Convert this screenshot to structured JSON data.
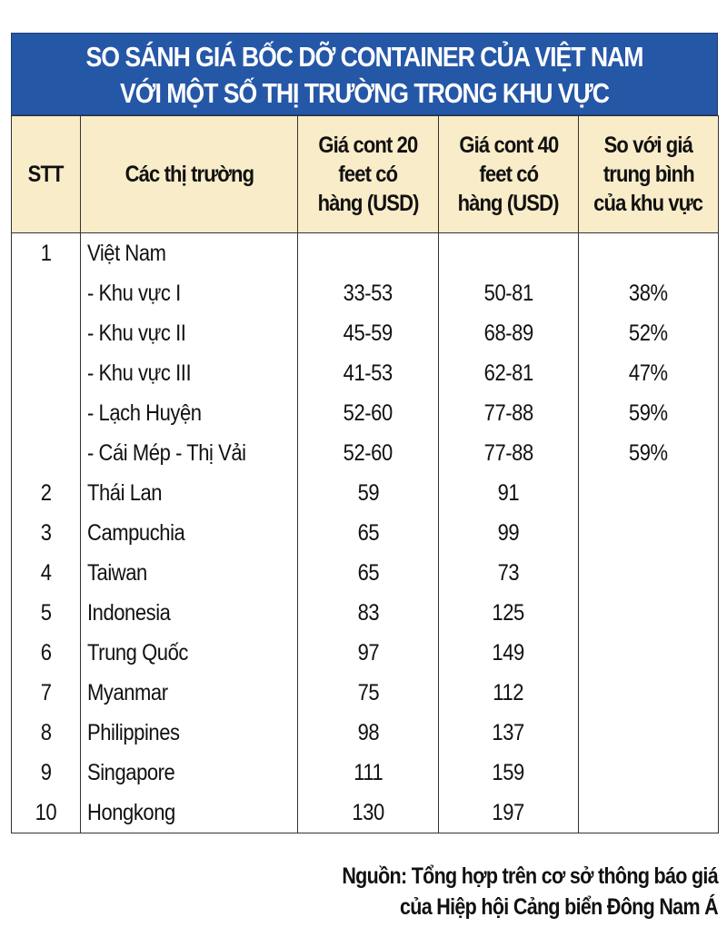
{
  "chart_data": {
    "type": "table",
    "title_lines": [
      "SO SÁNH GIÁ BỐC DỠ CONTAINER CỦA VIỆT NAM",
      "VỚI MỘT SỐ THỊ TRƯỜNG TRONG KHU VỰC"
    ],
    "columns": [
      [
        "STT"
      ],
      [
        "Các thị trường"
      ],
      [
        "Giá cont 20",
        "feet có",
        "hàng (USD)"
      ],
      [
        "Giá cont 40",
        "feet có",
        "hàng (USD)"
      ],
      [
        "So với giá",
        "trung bình",
        "của khu vực"
      ]
    ],
    "rows": [
      [
        "1",
        "Việt Nam",
        "",
        "",
        ""
      ],
      [
        "",
        "- Khu vực I",
        "33-53",
        "50-81",
        "38%"
      ],
      [
        "",
        "- Khu vực II",
        "45-59",
        "68-89",
        "52%"
      ],
      [
        "",
        "- Khu vực III",
        "41-53",
        "62-81",
        "47%"
      ],
      [
        "",
        "- Lạch Huyện",
        "52-60",
        "77-88",
        "59%"
      ],
      [
        "",
        "- Cái Mép - Thị Vải",
        "52-60",
        "77-88",
        "59%"
      ],
      [
        "2",
        "Thái Lan",
        "59",
        "91",
        ""
      ],
      [
        "3",
        "Campuchia",
        "65",
        "99",
        ""
      ],
      [
        "4",
        "Taiwan",
        "65",
        "73",
        ""
      ],
      [
        "5",
        "Indonesia",
        "83",
        "125",
        ""
      ],
      [
        "6",
        "Trung Quốc",
        "97",
        "149",
        ""
      ],
      [
        "7",
        "Myanmar",
        "75",
        "112",
        ""
      ],
      [
        "8",
        "Philippines",
        "98",
        "137",
        ""
      ],
      [
        "9",
        "Singapore",
        "111",
        "159",
        ""
      ],
      [
        "10",
        "Hongkong",
        "130",
        "197",
        ""
      ]
    ],
    "source_lines": [
      "Nguồn: Tổng hợp trên cơ sở thông báo giá",
      "của Hiệp hội Cảng biển Đông Nam Á"
    ]
  },
  "colors": {
    "title_bg": "#2557a7",
    "header_bg": "#f9ecc9"
  }
}
